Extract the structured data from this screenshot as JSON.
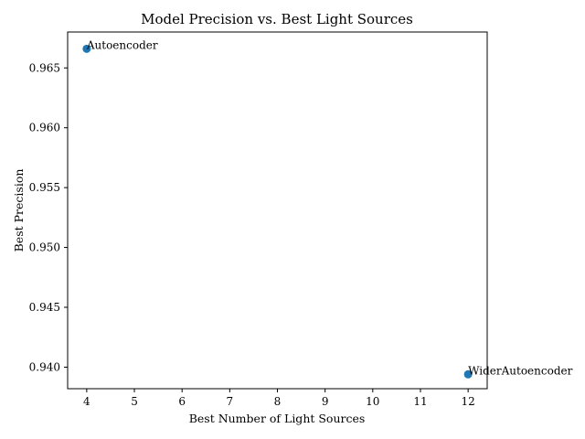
{
  "chart_data": {
    "type": "scatter",
    "title": "Model Precision vs. Best Light Sources",
    "xlabel": "Best Number of Light Sources",
    "ylabel": "Best Precision",
    "xlim": [
      3.6,
      12.4
    ],
    "ylim": [
      0.9382,
      0.968
    ],
    "xticks": [
      4,
      5,
      6,
      7,
      8,
      9,
      10,
      11,
      12
    ],
    "yticks": [
      0.94,
      0.945,
      0.95,
      0.955,
      0.96,
      0.965
    ],
    "ytick_labels": [
      "0.940",
      "0.945",
      "0.950",
      "0.955",
      "0.960",
      "0.965"
    ],
    "grid": false,
    "point_color": "#1f77b4",
    "points": [
      {
        "label": "Autoencoder",
        "x": 4,
        "y": 0.9666
      },
      {
        "label": "WiderAutoencoder",
        "x": 12,
        "y": 0.9394
      }
    ]
  }
}
